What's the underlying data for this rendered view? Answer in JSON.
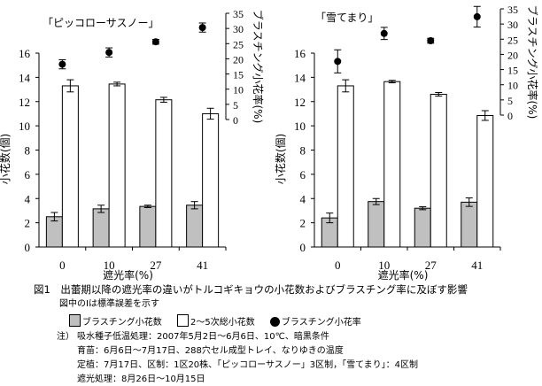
{
  "chart_data": [
    {
      "type": "bar",
      "title": "「ピッコローサスノー」",
      "xlabel": "遮光率(%)",
      "ylabel": "小花数(個)",
      "y2label": "ブラスチング小花率(%)",
      "categories": [
        "0",
        "10",
        "27",
        "41"
      ],
      "ylim": [
        0,
        16
      ],
      "yticks": [
        0,
        2,
        4,
        6,
        8,
        10,
        12,
        14,
        16
      ],
      "y2lim": [
        0,
        35
      ],
      "y2ticks": [
        0,
        5,
        10,
        15,
        20,
        25,
        30,
        35
      ],
      "series": [
        {
          "name": "ブラスチング小花数",
          "type": "bar",
          "axis": "left",
          "color": "#c0c0c0",
          "values": [
            2.5,
            3.15,
            3.35,
            3.45
          ],
          "errors": [
            0.35,
            0.3,
            0.1,
            0.3
          ]
        },
        {
          "name": "2～5次総小花数",
          "type": "bar",
          "axis": "left",
          "color": "#ffffff",
          "values": [
            13.3,
            13.45,
            12.15,
            11.0
          ],
          "errors": [
            0.5,
            0.15,
            0.2,
            0.45
          ]
        },
        {
          "name": "ブラスチング小花率",
          "type": "scatter",
          "axis": "right",
          "color": "#000000",
          "values": [
            18.2,
            22.1,
            25.6,
            30.3
          ],
          "errors": [
            1.5,
            1.5,
            0.8,
            1.5
          ]
        }
      ]
    },
    {
      "type": "bar",
      "title": "「雪てまり」",
      "xlabel": "遮光率(%)",
      "ylabel": "小花数(個)",
      "y2label": "ブラスチング小花率(%)",
      "categories": [
        "0",
        "10",
        "27",
        "41"
      ],
      "ylim": [
        0,
        16
      ],
      "yticks": [
        0,
        2,
        4,
        6,
        8,
        10,
        12,
        14,
        16
      ],
      "y2lim": [
        0,
        35
      ],
      "y2ticks": [
        0,
        5,
        10,
        15,
        20,
        25,
        30,
        35
      ],
      "series": [
        {
          "name": "ブラスチング小花数",
          "type": "bar",
          "axis": "left",
          "color": "#c0c0c0",
          "values": [
            2.4,
            3.75,
            3.2,
            3.7
          ],
          "errors": [
            0.4,
            0.25,
            0.12,
            0.35
          ]
        },
        {
          "name": "2～5次総小花数",
          "type": "bar",
          "axis": "left",
          "color": "#ffffff",
          "values": [
            13.3,
            13.65,
            12.6,
            10.85
          ],
          "errors": [
            0.5,
            0.1,
            0.15,
            0.4
          ]
        },
        {
          "name": "ブラスチング小花率",
          "type": "scatter",
          "axis": "right",
          "color": "#000000",
          "values": [
            17.7,
            26.9,
            24.5,
            32.4
          ],
          "errors": [
            3.8,
            2.0,
            0.8,
            3.4
          ]
        }
      ]
    }
  ],
  "caption": {
    "title": "図1　出蕾期以降の遮光率の違いがトルコギキョウの小花数およびブラスチング率に及ぼす影響",
    "error_note": "図中のIは標準誤差を示す",
    "legend": [
      "ブラスチング小花数",
      "2～5次総小花数",
      "ブラスチング小花率"
    ],
    "notes_prefix": "注）",
    "notes": [
      "吸水種子低温処理：2007年5月2日～6月6日、10℃、暗黒条件",
      "育苗：6月6日～7月17日、288穴セル成型トレイ、なりゆきの温度",
      "定植：7月17日、区制：1区20株、「ピッコローサスノー」3区制，「雪てまり」：4区制",
      "遮光処理：8月26日～10月15日"
    ]
  }
}
